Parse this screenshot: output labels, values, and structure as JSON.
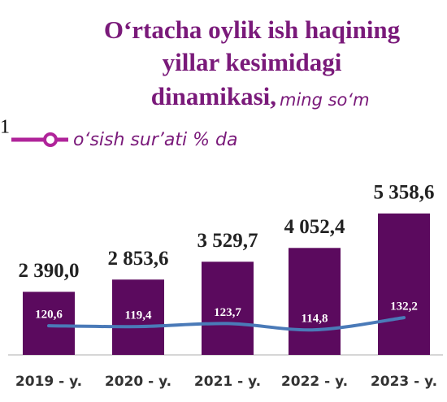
{
  "chart_data": {
    "type": "bar",
    "title": [
      "O‘rtacha oylik ish haqining",
      "yillar kesimidagi",
      "dinamikasi,"
    ],
    "subtitle": "ming so‘m",
    "annotation": "1",
    "categories": [
      "2019 - y.",
      "2020 - y.",
      "2021 - y.",
      "2022 - y.",
      "2023 - y."
    ],
    "ylim": [
      0,
      6000
    ],
    "y2lim": [
      79,
      305
    ],
    "series": [
      {
        "color": "#5b0a5e",
        "values": [
          2390.0,
          2853.6,
          3529.7,
          4052.4,
          5358.6
        ],
        "value_labels": [
          "2 390,0",
          "2 853,6",
          "3 529,7",
          "4 052,4",
          "5 358,6"
        ]
      },
      {
        "name": "o‘sish sur’ati % da",
        "type": "line",
        "axis": "y2",
        "color": "#4a7ab8",
        "marker_color": "#b0249a",
        "values": [
          120.6,
          119.4,
          123.7,
          114.8,
          132.2
        ],
        "value_labels": [
          "120,6",
          "119,4",
          "123,7",
          "114,8",
          "132,2"
        ]
      }
    ]
  }
}
